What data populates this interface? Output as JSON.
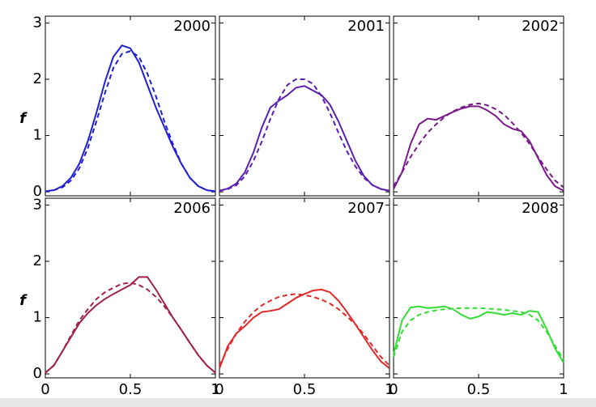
{
  "chart_data": [
    {
      "type": "line",
      "title": "2000",
      "ylabel": "f",
      "xlim": [
        0,
        1
      ],
      "ylim": [
        -0.07,
        3.12
      ],
      "xticks": [
        0,
        0.5,
        1
      ],
      "yticks": [
        0,
        1,
        2,
        3
      ],
      "show_xtick_labels": false,
      "show_ytick_labels": true,
      "x": [
        0,
        0.05,
        0.1,
        0.15,
        0.2,
        0.25,
        0.3,
        0.35,
        0.4,
        0.45,
        0.5,
        0.55,
        0.6,
        0.65,
        0.7,
        0.75,
        0.8,
        0.85,
        0.9,
        0.95,
        1
      ],
      "series": [
        {
          "color": "#1f1fd6",
          "style": "solid",
          "values": [
            0.01,
            0.03,
            0.1,
            0.25,
            0.5,
            0.9,
            1.4,
            1.95,
            2.4,
            2.6,
            2.55,
            2.3,
            1.9,
            1.5,
            1.15,
            0.8,
            0.5,
            0.25,
            0.1,
            0.03,
            0.01
          ]
        },
        {
          "color": "#1f1fd6",
          "style": "dashed",
          "values": [
            0.01,
            0.03,
            0.08,
            0.2,
            0.42,
            0.78,
            1.25,
            1.75,
            2.2,
            2.45,
            2.5,
            2.4,
            2.1,
            1.7,
            1.25,
            0.85,
            0.5,
            0.25,
            0.1,
            0.03,
            0.01
          ]
        }
      ]
    },
    {
      "type": "line",
      "title": "2001",
      "xlim": [
        0,
        1
      ],
      "ylim": [
        -0.07,
        3.12
      ],
      "xticks": [
        0,
        0.5,
        1
      ],
      "yticks": [
        0,
        1,
        2,
        3
      ],
      "show_xtick_labels": false,
      "show_ytick_labels": false,
      "x": [
        0,
        0.05,
        0.1,
        0.15,
        0.2,
        0.25,
        0.3,
        0.35,
        0.4,
        0.45,
        0.5,
        0.55,
        0.6,
        0.65,
        0.7,
        0.75,
        0.8,
        0.85,
        0.9,
        0.95,
        1
      ],
      "series": [
        {
          "color": "#5a1fb0",
          "style": "solid",
          "values": [
            0.02,
            0.06,
            0.15,
            0.35,
            0.7,
            1.15,
            1.5,
            1.62,
            1.72,
            1.85,
            1.88,
            1.8,
            1.72,
            1.55,
            1.25,
            0.9,
            0.55,
            0.28,
            0.12,
            0.05,
            0.02
          ]
        },
        {
          "color": "#5a1fb0",
          "style": "dashed",
          "values": [
            0.02,
            0.05,
            0.12,
            0.28,
            0.55,
            0.9,
            1.3,
            1.65,
            1.9,
            2.0,
            2.0,
            1.92,
            1.7,
            1.4,
            1.05,
            0.72,
            0.45,
            0.25,
            0.12,
            0.05,
            0.02
          ]
        }
      ]
    },
    {
      "type": "line",
      "title": "2002",
      "xlim": [
        0,
        1
      ],
      "ylim": [
        -0.07,
        3.12
      ],
      "xticks": [
        0,
        0.5,
        1
      ],
      "yticks": [
        0,
        1,
        2,
        3
      ],
      "show_xtick_labels": false,
      "show_ytick_labels": false,
      "x": [
        0,
        0.05,
        0.1,
        0.15,
        0.2,
        0.25,
        0.3,
        0.35,
        0.4,
        0.45,
        0.5,
        0.55,
        0.6,
        0.65,
        0.7,
        0.75,
        0.8,
        0.85,
        0.9,
        0.95,
        1
      ],
      "series": [
        {
          "color": "#7a1a8a",
          "style": "solid",
          "values": [
            0.05,
            0.35,
            0.85,
            1.2,
            1.3,
            1.28,
            1.35,
            1.42,
            1.48,
            1.52,
            1.52,
            1.45,
            1.35,
            1.2,
            1.12,
            1.08,
            0.9,
            0.6,
            0.3,
            0.1,
            0.02
          ]
        },
        {
          "color": "#7a1a8a",
          "style": "dashed",
          "values": [
            0.1,
            0.35,
            0.62,
            0.85,
            1.05,
            1.2,
            1.33,
            1.43,
            1.5,
            1.55,
            1.57,
            1.54,
            1.47,
            1.37,
            1.22,
            1.05,
            0.85,
            0.62,
            0.4,
            0.2,
            0.08
          ]
        }
      ]
    },
    {
      "type": "line",
      "title": "2006",
      "ylabel": "f",
      "xlim": [
        0,
        1
      ],
      "ylim": [
        -0.07,
        3.12
      ],
      "xticks": [
        0,
        0.5,
        1
      ],
      "yticks": [
        0,
        1,
        2,
        3
      ],
      "show_xtick_labels": true,
      "show_ytick_labels": true,
      "x": [
        0,
        0.05,
        0.1,
        0.15,
        0.2,
        0.25,
        0.3,
        0.35,
        0.4,
        0.45,
        0.5,
        0.55,
        0.6,
        0.65,
        0.7,
        0.75,
        0.8,
        0.85,
        0.9,
        0.95,
        1
      ],
      "series": [
        {
          "color": "#a0204a",
          "style": "solid",
          "values": [
            0.02,
            0.15,
            0.4,
            0.65,
            0.9,
            1.08,
            1.22,
            1.33,
            1.42,
            1.5,
            1.58,
            1.72,
            1.72,
            1.5,
            1.25,
            1.0,
            0.78,
            0.55,
            0.33,
            0.15,
            0.02
          ]
        },
        {
          "color": "#a0204a",
          "style": "dashed",
          "values": [
            0.02,
            0.15,
            0.4,
            0.68,
            0.95,
            1.15,
            1.33,
            1.45,
            1.53,
            1.6,
            1.62,
            1.58,
            1.5,
            1.37,
            1.2,
            1.0,
            0.78,
            0.55,
            0.33,
            0.15,
            0.02
          ]
        }
      ]
    },
    {
      "type": "line",
      "title": "2007",
      "xlim": [
        0,
        1
      ],
      "ylim": [
        -0.07,
        3.12
      ],
      "xticks": [
        0,
        0.5,
        1
      ],
      "yticks": [
        0,
        1,
        2,
        3
      ],
      "show_xtick_labels": true,
      "show_ytick_labels": false,
      "x": [
        0,
        0.05,
        0.1,
        0.15,
        0.2,
        0.25,
        0.3,
        0.35,
        0.4,
        0.45,
        0.5,
        0.55,
        0.6,
        0.65,
        0.7,
        0.75,
        0.8,
        0.85,
        0.9,
        0.95,
        1
      ],
      "series": [
        {
          "color": "#e02a2a",
          "style": "solid",
          "values": [
            0.1,
            0.5,
            0.72,
            0.85,
            1.0,
            1.1,
            1.12,
            1.15,
            1.25,
            1.35,
            1.42,
            1.48,
            1.5,
            1.45,
            1.3,
            1.1,
            0.88,
            0.65,
            0.42,
            0.22,
            0.1
          ]
        },
        {
          "color": "#e02a2a",
          "style": "dashed",
          "values": [
            0.15,
            0.45,
            0.72,
            0.93,
            1.1,
            1.22,
            1.3,
            1.37,
            1.4,
            1.42,
            1.4,
            1.37,
            1.32,
            1.25,
            1.15,
            1.02,
            0.88,
            0.7,
            0.5,
            0.3,
            0.15
          ]
        }
      ]
    },
    {
      "type": "line",
      "title": "2008",
      "xlim": [
        0,
        1
      ],
      "ylim": [
        -0.07,
        3.12
      ],
      "xticks": [
        0,
        0.5,
        1
      ],
      "yticks": [
        0,
        1,
        2,
        3
      ],
      "show_xtick_labels": true,
      "show_ytick_labels": false,
      "x": [
        0,
        0.05,
        0.1,
        0.15,
        0.2,
        0.25,
        0.3,
        0.35,
        0.4,
        0.45,
        0.5,
        0.55,
        0.6,
        0.65,
        0.7,
        0.75,
        0.8,
        0.85,
        0.9,
        0.95,
        1
      ],
      "series": [
        {
          "color": "#33dd33",
          "style": "solid",
          "values": [
            0.35,
            0.95,
            1.18,
            1.2,
            1.17,
            1.18,
            1.2,
            1.15,
            1.05,
            0.98,
            1.02,
            1.1,
            1.08,
            1.05,
            1.08,
            1.05,
            1.12,
            1.1,
            0.8,
            0.45,
            0.2
          ]
        },
        {
          "color": "#33dd33",
          "style": "dashed",
          "values": [
            0.3,
            0.75,
            0.95,
            1.05,
            1.1,
            1.13,
            1.15,
            1.16,
            1.17,
            1.17,
            1.17,
            1.16,
            1.15,
            1.14,
            1.12,
            1.1,
            1.05,
            0.95,
            0.75,
            0.5,
            0.25
          ]
        }
      ]
    }
  ]
}
